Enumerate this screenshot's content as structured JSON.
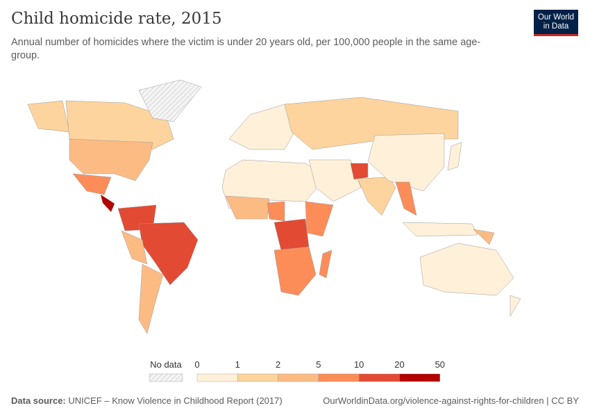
{
  "title": "Child homicide rate, 2015",
  "subtitle": "Annual number of homicides where the victim is under 20 years old, per 100,000 people in the same age-group.",
  "logo": {
    "line1": "Our World",
    "line2": "in Data"
  },
  "legend": {
    "no_data_label": "No data",
    "ticks": [
      "0",
      "1",
      "2",
      "5",
      "10",
      "20",
      "50"
    ],
    "colors": [
      "#fef0d9",
      "#fdd49e",
      "#fdbb84",
      "#fc8d59",
      "#e34a33",
      "#b30000"
    ]
  },
  "regions": [
    {
      "name": "Alaska",
      "bin": "1-2"
    },
    {
      "name": "Canada",
      "bin": "1-2"
    },
    {
      "name": "Greenland",
      "bin": "no data"
    },
    {
      "name": "United States",
      "bin": "2-5"
    },
    {
      "name": "Mexico",
      "bin": "5-10"
    },
    {
      "name": "Central America",
      "bin": "20-50"
    },
    {
      "name": "Colombia/Venezuela",
      "bin": "10-20"
    },
    {
      "name": "Brazil",
      "bin": "10-20"
    },
    {
      "name": "Peru/Bolivia",
      "bin": "2-5"
    },
    {
      "name": "Argentina/Chile",
      "bin": "2-5"
    },
    {
      "name": "Europe",
      "bin": "0-1"
    },
    {
      "name": "Russia",
      "bin": "1-2"
    },
    {
      "name": "North Africa",
      "bin": "0-1"
    },
    {
      "name": "West Africa",
      "bin": "2-5"
    },
    {
      "name": "Nigeria",
      "bin": "5-10"
    },
    {
      "name": "DR Congo",
      "bin": "10-20"
    },
    {
      "name": "East Africa",
      "bin": "5-10"
    },
    {
      "name": "Southern Africa",
      "bin": "5-10"
    },
    {
      "name": "Madagascar",
      "bin": "5-10"
    },
    {
      "name": "Middle East",
      "bin": "0-1"
    },
    {
      "name": "Afghanistan",
      "bin": "10-20"
    },
    {
      "name": "India",
      "bin": "1-2"
    },
    {
      "name": "China",
      "bin": "0-1"
    },
    {
      "name": "Myanmar/Thailand",
      "bin": "5-10"
    },
    {
      "name": "Indonesia",
      "bin": "0-1"
    },
    {
      "name": "Papua New Guinea",
      "bin": "2-5"
    },
    {
      "name": "Japan",
      "bin": "0-1"
    },
    {
      "name": "Australia",
      "bin": "0-1"
    },
    {
      "name": "New Zealand",
      "bin": "0-1"
    }
  ],
  "footer": {
    "source_label": "Data source:",
    "source": "UNICEF – Know Violence in Childhood Report (2017)",
    "url": "OurWorldinData.org/violence-against-rights-for-children",
    "license": "CC BY"
  }
}
